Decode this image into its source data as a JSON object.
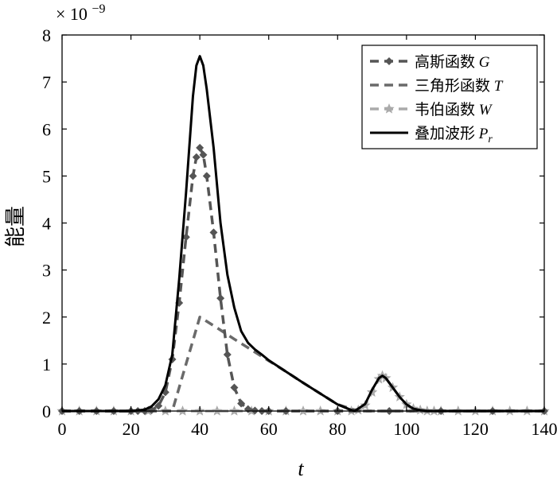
{
  "chart_data": {
    "type": "line",
    "multiplier_label": "× 10",
    "multiplier_exponent": "−9",
    "xlabel": "t",
    "ylabel": "能量",
    "xlim": [
      0,
      140
    ],
    "ylim": [
      0,
      8
    ],
    "xticks": [
      0,
      20,
      40,
      60,
      80,
      100,
      120,
      140
    ],
    "yticks": [
      0,
      1,
      2,
      3,
      4,
      5,
      6,
      7,
      8
    ],
    "grid": false,
    "legend_position": "top-right",
    "series": [
      {
        "name": "高斯函数 G",
        "name_text": "高斯函数 ",
        "name_symbol": "G",
        "style": "dashed",
        "marker": "diamond",
        "color": "#555555",
        "x": [
          0,
          5,
          10,
          15,
          20,
          22,
          24,
          26,
          28,
          30,
          32,
          34,
          36,
          38,
          39,
          40,
          41,
          42,
          44,
          46,
          48,
          50,
          52,
          54,
          56,
          58,
          60,
          65,
          70,
          75,
          80,
          85,
          90,
          95,
          100,
          105,
          110,
          115,
          120,
          125,
          130,
          135,
          140
        ],
        "y": [
          0,
          0,
          0,
          0,
          0,
          0,
          0,
          0.02,
          0.11,
          0.4,
          1.1,
          2.3,
          3.7,
          5.0,
          5.4,
          5.6,
          5.45,
          5.0,
          3.8,
          2.4,
          1.2,
          0.5,
          0.16,
          0.04,
          0.01,
          0,
          0,
          0,
          0,
          0,
          0,
          0,
          0,
          0,
          0,
          0,
          0,
          0,
          0,
          0,
          0,
          0,
          0
        ]
      },
      {
        "name": "三角形函数 T",
        "name_text": "三角形函数 ",
        "name_symbol": "T",
        "style": "dashed",
        "marker": "none",
        "color": "#6a6a6a",
        "x": [
          0,
          32,
          40,
          45,
          50,
          55,
          60,
          65,
          70,
          75,
          80,
          86,
          140
        ],
        "y": [
          0,
          0,
          2.0,
          1.77,
          1.53,
          1.3,
          1.07,
          0.84,
          0.6,
          0.37,
          0.14,
          0,
          0
        ]
      },
      {
        "name": "韦伯函数 W",
        "name_text": "韦伯函数 ",
        "name_symbol": "W",
        "style": "dashed",
        "marker": "star",
        "color": "#aaaaaa",
        "x": [
          0,
          5,
          10,
          15,
          20,
          25,
          30,
          35,
          40,
          45,
          50,
          55,
          60,
          65,
          70,
          75,
          80,
          84,
          86,
          88,
          90,
          92,
          93,
          94,
          96,
          98,
          100,
          102,
          104,
          106,
          108,
          110,
          115,
          120,
          125,
          130,
          135,
          140
        ],
        "y": [
          0,
          0,
          0,
          0,
          0,
          0,
          0,
          0,
          0,
          0,
          0,
          0,
          0,
          0,
          0,
          0,
          0,
          0,
          0.02,
          0.12,
          0.4,
          0.68,
          0.75,
          0.7,
          0.5,
          0.3,
          0.14,
          0.05,
          0.02,
          0,
          0,
          0,
          0,
          0,
          0,
          0,
          0,
          0
        ]
      },
      {
        "name": "叠加波形 Pr",
        "name_text": "叠加波形 ",
        "name_symbol": "P",
        "name_subscript": "r",
        "style": "solid",
        "marker": "none",
        "color": "#000000",
        "x": [
          0,
          10,
          20,
          24,
          26,
          28,
          30,
          32,
          34,
          36,
          38,
          39,
          40,
          41,
          42,
          44,
          46,
          48,
          50,
          52,
          54,
          56,
          58,
          60,
          65,
          70,
          75,
          80,
          84,
          85,
          86,
          88,
          90,
          92,
          93,
          94,
          96,
          98,
          100,
          102,
          104,
          106,
          110,
          120,
          130,
          140
        ],
        "y": [
          0,
          0,
          0,
          0.03,
          0.1,
          0.25,
          0.55,
          1.2,
          2.8,
          4.65,
          6.7,
          7.35,
          7.55,
          7.35,
          6.85,
          5.6,
          4.0,
          2.9,
          2.2,
          1.7,
          1.45,
          1.31,
          1.2,
          1.08,
          0.84,
          0.6,
          0.37,
          0.14,
          0.02,
          0,
          0.05,
          0.15,
          0.45,
          0.7,
          0.75,
          0.7,
          0.5,
          0.3,
          0.14,
          0.05,
          0.02,
          0,
          0,
          0,
          0,
          0
        ]
      }
    ]
  }
}
